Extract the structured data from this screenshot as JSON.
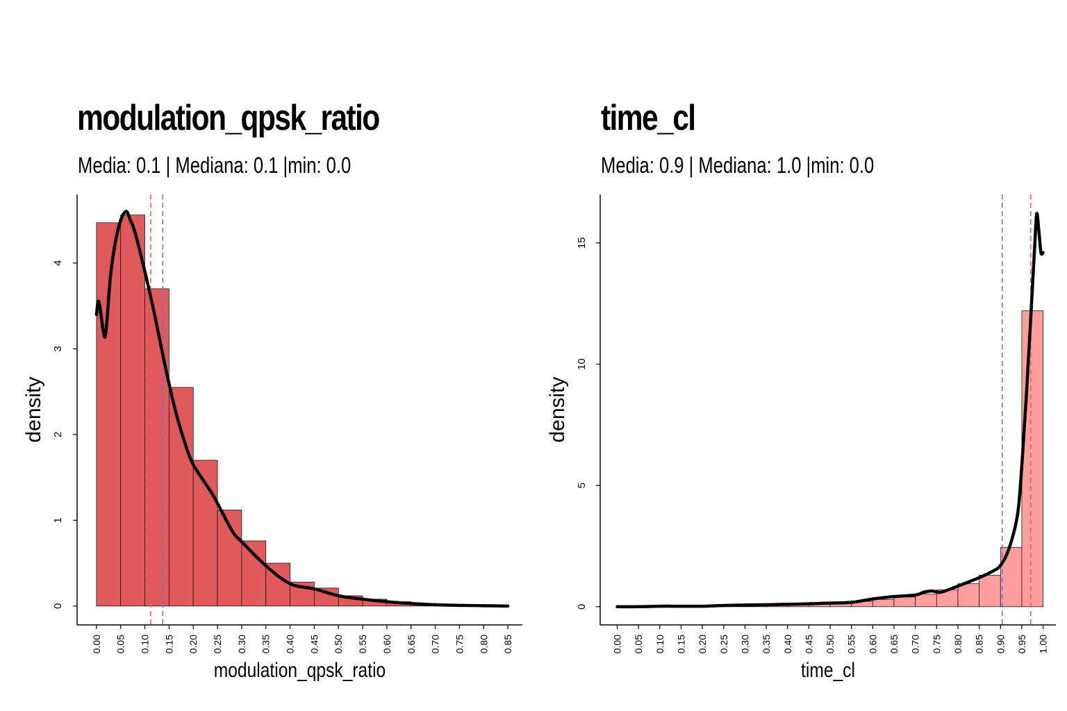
{
  "chart_data": [
    {
      "type": "bar",
      "title": "modulation_qpsk_ratio",
      "subtitle": "Media: 0.1 | Mediana: 0.1 |min: 0.0",
      "xlabel": "modulation_qpsk_ratio",
      "ylabel": "density",
      "bar_color": "#e05a5c",
      "bin_width": 0.05,
      "bins_start": [
        0.0,
        0.05,
        0.1,
        0.15,
        0.2,
        0.25,
        0.3,
        0.35,
        0.4,
        0.45,
        0.5,
        0.55,
        0.6,
        0.65,
        0.7,
        0.75
      ],
      "values": [
        4.47,
        4.56,
        3.7,
        2.55,
        1.7,
        1.12,
        0.76,
        0.5,
        0.28,
        0.21,
        0.12,
        0.08,
        0.05,
        0.03,
        0.015,
        0.01
      ],
      "density_curve": {
        "x": [
          0.0,
          0.005,
          0.015,
          0.02,
          0.03,
          0.045,
          0.06,
          0.07,
          0.08,
          0.1,
          0.12,
          0.14,
          0.16,
          0.18,
          0.2,
          0.24,
          0.28,
          0.3,
          0.35,
          0.4,
          0.45,
          0.5,
          0.55,
          0.6,
          0.65,
          0.7,
          0.75,
          0.8,
          0.85
        ],
        "y": [
          3.4,
          3.55,
          3.18,
          3.22,
          3.9,
          4.4,
          4.6,
          4.5,
          4.35,
          3.9,
          3.4,
          2.85,
          2.35,
          1.95,
          1.65,
          1.3,
          0.88,
          0.75,
          0.47,
          0.26,
          0.2,
          0.12,
          0.08,
          0.05,
          0.03,
          0.015,
          0.008,
          0.004,
          0.0
        ]
      },
      "mean_line": {
        "value": 0.137,
        "color": "#6f6fe0"
      },
      "median_line": {
        "value": 0.112,
        "color": "#f06060"
      },
      "xlim": [
        -0.04,
        0.88
      ],
      "ylim": [
        -0.22,
        4.8
      ],
      "x_ticks": [
        "0.00",
        "0.05",
        "0.10",
        "0.15",
        "0.20",
        "0.25",
        "0.30",
        "0.35",
        "0.40",
        "0.45",
        "0.50",
        "0.55",
        "0.60",
        "0.65",
        "0.70",
        "0.75",
        "0.80",
        "0.85"
      ],
      "y_ticks": [
        "0",
        "1",
        "2",
        "3",
        "4"
      ],
      "grid": false
    },
    {
      "type": "bar",
      "title": "time_cl",
      "subtitle": "Media: 0.9 | Mediana: 1.0 |min: 0.0",
      "xlabel": "time_cl",
      "ylabel": "density",
      "bar_color": "#ff9e9c",
      "bin_width": 0.05,
      "bins_start": [
        0.0,
        0.05,
        0.1,
        0.15,
        0.2,
        0.25,
        0.3,
        0.35,
        0.4,
        0.45,
        0.5,
        0.55,
        0.6,
        0.65,
        0.7,
        0.75,
        0.8,
        0.85,
        0.9,
        0.95
      ],
      "values": [
        0.02,
        0.03,
        0.04,
        0.05,
        0.06,
        0.07,
        0.08,
        0.09,
        0.11,
        0.13,
        0.17,
        0.22,
        0.3,
        0.4,
        0.52,
        0.7,
        0.95,
        1.3,
        2.45,
        12.2
      ],
      "density_curve": {
        "x": [
          0.0,
          0.05,
          0.1,
          0.15,
          0.2,
          0.25,
          0.3,
          0.35,
          0.4,
          0.45,
          0.5,
          0.55,
          0.6,
          0.65,
          0.7,
          0.72,
          0.74,
          0.76,
          0.8,
          0.85,
          0.88,
          0.9,
          0.92,
          0.94,
          0.95,
          0.96,
          0.97,
          0.98,
          0.985,
          0.99,
          0.995,
          1.0
        ],
        "y": [
          0.0,
          0.0,
          0.02,
          0.02,
          0.02,
          0.05,
          0.07,
          0.08,
          0.1,
          0.12,
          0.15,
          0.18,
          0.32,
          0.42,
          0.48,
          0.6,
          0.65,
          0.6,
          0.85,
          1.2,
          1.45,
          1.7,
          2.4,
          3.8,
          5.8,
          8.5,
          11.6,
          14.8,
          16.2,
          15.5,
          14.6,
          14.6
        ]
      },
      "mean_line": {
        "value": 0.904,
        "color": "#6f6fe0"
      },
      "median_line": {
        "value": 0.971,
        "color": "#f06060"
      },
      "xlim": [
        -0.04,
        1.03
      ],
      "ylim": [
        -0.75,
        17.0
      ],
      "x_ticks": [
        "0.00",
        "0.05",
        "0.10",
        "0.15",
        "0.20",
        "0.25",
        "0.30",
        "0.35",
        "0.40",
        "0.45",
        "0.50",
        "0.55",
        "0.60",
        "0.65",
        "0.70",
        "0.75",
        "0.80",
        "0.85",
        "0.90",
        "0.95",
        "1.00"
      ],
      "y_ticks": [
        "0",
        "5",
        "10",
        "15"
      ],
      "grid": false
    }
  ]
}
